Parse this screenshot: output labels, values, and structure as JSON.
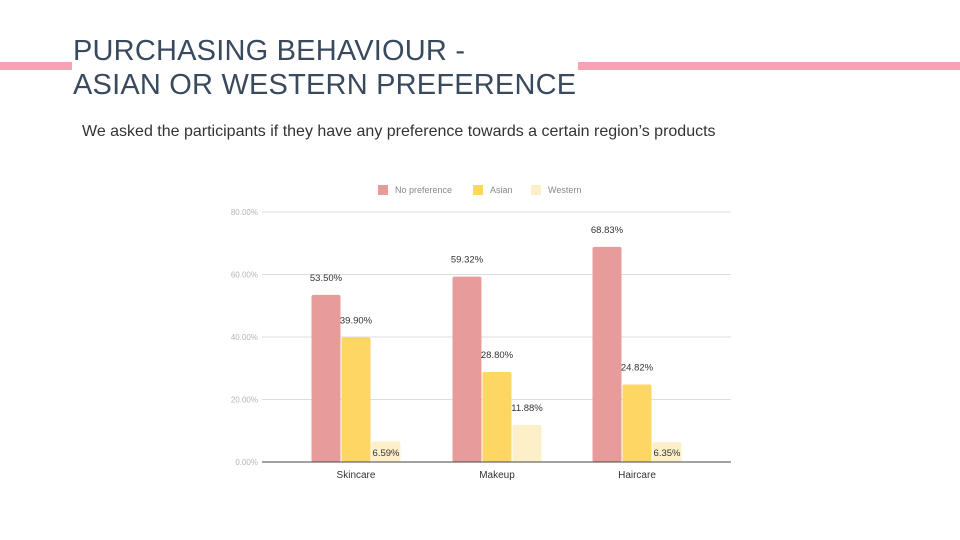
{
  "slide": {
    "title_line1": "PURCHASING BEHAVIOUR -",
    "title_line2": "ASIAN OR WESTERN PREFERENCE",
    "subtitle": "We asked the participants if they have any preference towards a certain region’s products",
    "accent_color": "#f4a3b5"
  },
  "chart_data": {
    "type": "bar",
    "title": "",
    "xlabel": "",
    "ylabel": "",
    "categories": [
      "Skincare",
      "Makeup",
      "Haircare"
    ],
    "series": [
      {
        "name": "No preference",
        "color": "#e89b9b",
        "values": [
          53.5,
          59.32,
          68.83
        ],
        "labels": [
          "53.50%",
          "59.32%",
          "68.83%"
        ]
      },
      {
        "name": "Asian",
        "color": "#fdd663",
        "values": [
          39.9,
          28.8,
          24.82
        ],
        "labels": [
          "39.90%",
          "28.80%",
          "24.82%"
        ]
      },
      {
        "name": "Western",
        "color": "#fdefc8",
        "values": [
          6.59,
          11.88,
          6.35
        ],
        "labels": [
          "6.59%",
          "11.88%",
          "6.35%"
        ]
      }
    ],
    "yticks": [
      0,
      20,
      40,
      60,
      80
    ],
    "ytick_labels": [
      "0.00%",
      "20.00%",
      "40.00%",
      "60.00%",
      "80.00%"
    ],
    "ylim": [
      0,
      80
    ],
    "grid": true,
    "legend": "top"
  }
}
